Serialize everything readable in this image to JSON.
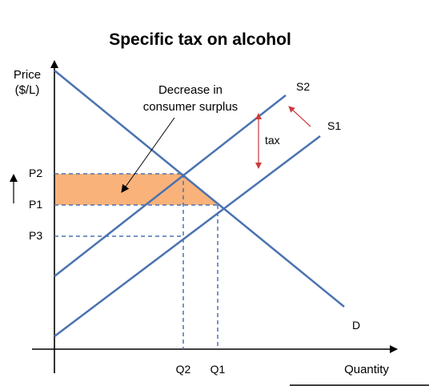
{
  "title": "Specific tax on alcohol",
  "axes": {
    "y_label_line1": "Price",
    "y_label_line2": "($/L)",
    "x_label": "Quantity"
  },
  "curves": {
    "supply_taxed": "S2",
    "supply_original": "S1",
    "demand": "D"
  },
  "prices": {
    "p2": "P2",
    "p1": "P1",
    "p3": "P3"
  },
  "quantities": {
    "q2": "Q2",
    "q1": "Q1"
  },
  "annotations": {
    "tax": "tax",
    "cs_line1": "Decrease in",
    "cs_line2": "consumer surplus"
  },
  "colors": {
    "curve": "#4a72b0",
    "shaded_area": "#f9b27a",
    "tax_arrow": "#cc3b3b",
    "axis": "#000000"
  }
}
